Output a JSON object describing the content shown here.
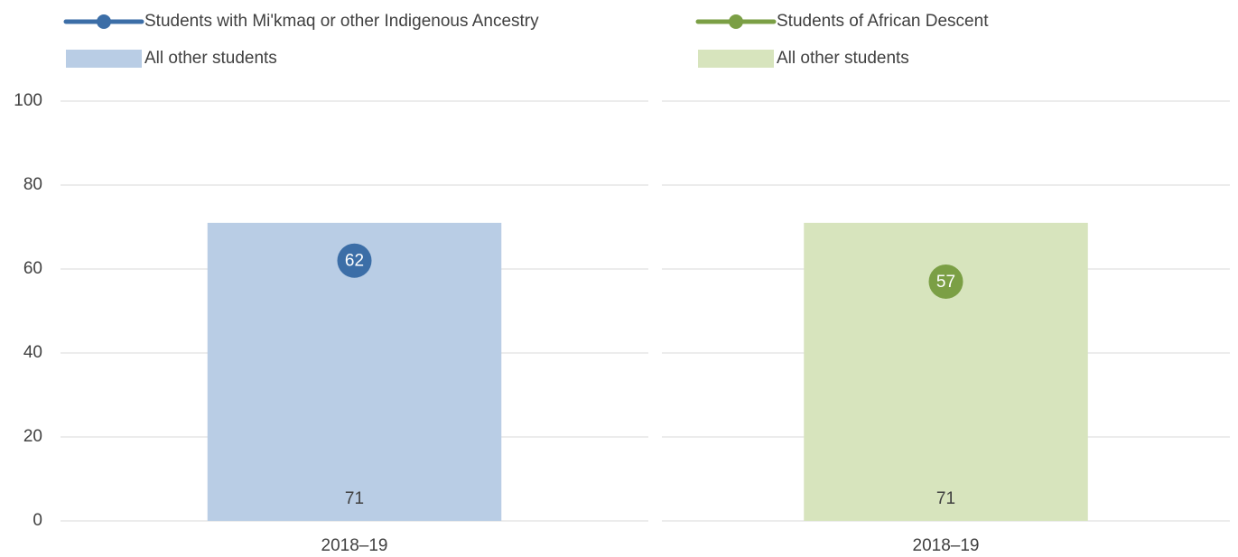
{
  "chart_data": [
    {
      "type": "bar",
      "categories": [
        "2018–19"
      ],
      "series": [
        {
          "name": "Students with Mi'kmaq or other Indigenous Ancestry",
          "type": "line",
          "color": "#3c6ea7",
          "values": [
            62
          ]
        },
        {
          "name": "All other students",
          "type": "bar",
          "color": "#b9cde5",
          "values": [
            71
          ]
        }
      ],
      "ylim": [
        0,
        100
      ],
      "yticks": [
        0,
        20,
        40,
        60,
        80,
        100
      ],
      "grid": true,
      "tick_labels": true
    },
    {
      "type": "bar",
      "categories": [
        "2018–19"
      ],
      "series": [
        {
          "name": "Students of African Descent",
          "type": "line",
          "color": "#7b9f45",
          "values": [
            57
          ]
        },
        {
          "name": "All other students",
          "type": "bar",
          "color": "#d7e4bd",
          "values": [
            71
          ]
        }
      ],
      "ylim": [
        0,
        100
      ],
      "yticks": [
        0,
        20,
        40,
        60,
        80,
        100
      ],
      "grid": true,
      "tick_labels": false
    }
  ]
}
